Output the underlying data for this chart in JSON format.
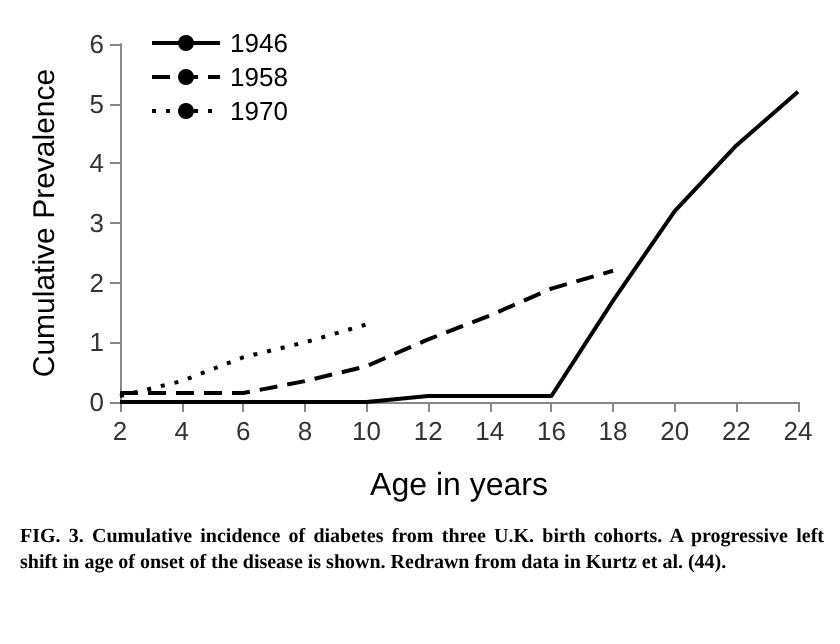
{
  "chart_data": {
    "type": "line",
    "xlabel": "Age in years",
    "ylabel": "Cumulative Prevalence",
    "xlim": [
      2,
      24
    ],
    "xticks": [
      2,
      4,
      6,
      8,
      10,
      12,
      14,
      16,
      18,
      20,
      22,
      24
    ],
    "ylim": [
      0,
      6
    ],
    "yticks": [
      0,
      1,
      2,
      3,
      4,
      5,
      6
    ],
    "grid": false,
    "legend": "top left",
    "marker": "none",
    "series": [
      {
        "name": "1946",
        "color": "#000000",
        "line_style": "solid",
        "x": [
          2,
          4,
          6,
          8,
          10,
          12,
          14,
          16,
          18,
          20,
          22,
          24
        ],
        "values": [
          0,
          0,
          0,
          0,
          0,
          0.1,
          0.1,
          0.1,
          1.7,
          3.2,
          4.3,
          5.2
        ]
      },
      {
        "name": "1958",
        "color": "#000000",
        "line_style": "dashed",
        "x": [
          2,
          4,
          6,
          8,
          10,
          12,
          14,
          16,
          18
        ],
        "values": [
          0.15,
          0.15,
          0.15,
          0.35,
          0.6,
          1.05,
          1.45,
          1.9,
          2.2
        ]
      },
      {
        "name": "1970",
        "color": "#000000",
        "line_style": "dotted",
        "x": [
          2,
          4,
          6,
          8,
          10
        ],
        "values": [
          0.1,
          0.35,
          0.75,
          1.0,
          1.3
        ]
      }
    ],
    "annotations": [
      "FIG. 3. Cumulative incidence of diabetes from three U.K. birth cohorts. A progressive left shift in age of onset of the disease is shown. Redrawn from data in Kurtz et al. (44)."
    ]
  }
}
